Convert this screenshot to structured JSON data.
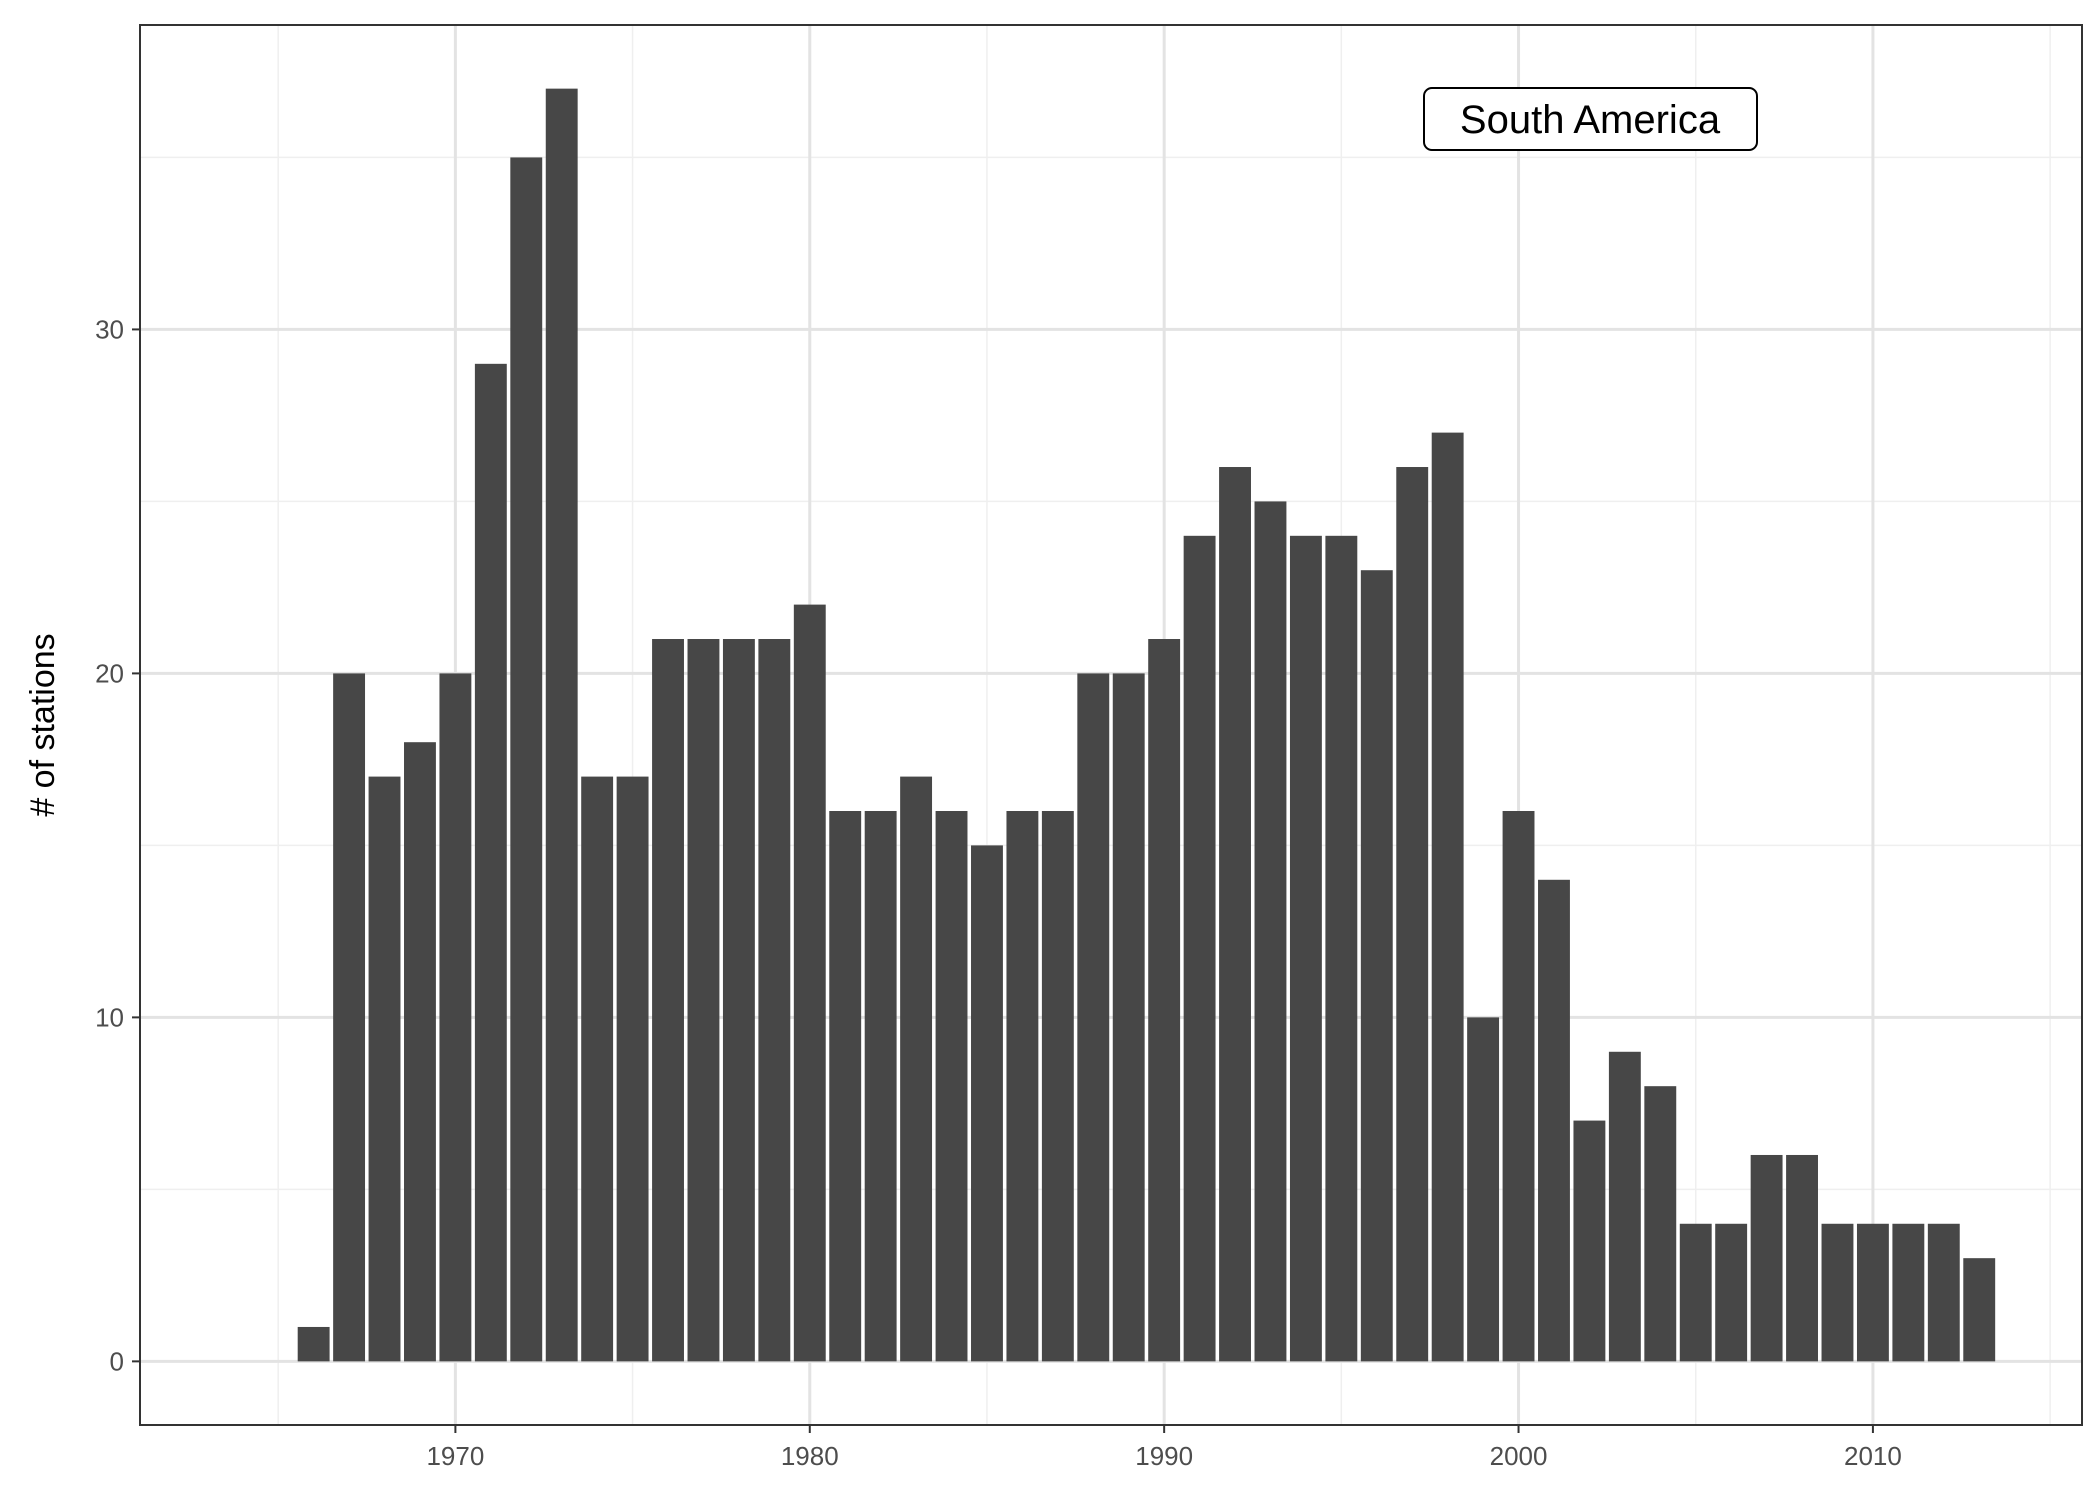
{
  "chart_data": {
    "type": "bar",
    "title": "",
    "xlabel": "",
    "ylabel": "# of stations",
    "annotation": "South America",
    "x": [
      1966,
      1967,
      1968,
      1969,
      1970,
      1971,
      1972,
      1973,
      1974,
      1975,
      1976,
      1977,
      1978,
      1979,
      1980,
      1981,
      1982,
      1983,
      1984,
      1985,
      1986,
      1987,
      1988,
      1989,
      1990,
      1991,
      1992,
      1993,
      1994,
      1995,
      1996,
      1997,
      1998,
      1999,
      2000,
      2001,
      2002,
      2003,
      2004,
      2005,
      2006,
      2007,
      2008,
      2009,
      2010,
      2011,
      2012,
      2013
    ],
    "values": [
      1,
      20,
      17,
      18,
      20,
      29,
      35,
      37,
      17,
      17,
      21,
      21,
      21,
      21,
      22,
      16,
      16,
      17,
      16,
      15,
      16,
      16,
      20,
      20,
      21,
      24,
      26,
      25,
      24,
      24,
      23,
      26,
      27,
      10,
      16,
      14,
      7,
      9,
      8,
      4,
      4,
      6,
      6,
      4,
      4,
      4,
      4,
      3
    ],
    "xlim": [
      1961.1,
      2015.9
    ],
    "ylim": [
      -1.85,
      38.85
    ],
    "xticks": [
      1970,
      1980,
      1990,
      2000,
      2010
    ],
    "yticks": [
      0,
      10,
      20,
      30
    ],
    "grid": true,
    "legend": "none",
    "colors": {
      "bar": "#474747",
      "grid_major": "#e3e3e3",
      "grid_minor": "#efefef",
      "panel_border": "#333333",
      "tick_text": "#4d4d4d"
    }
  }
}
